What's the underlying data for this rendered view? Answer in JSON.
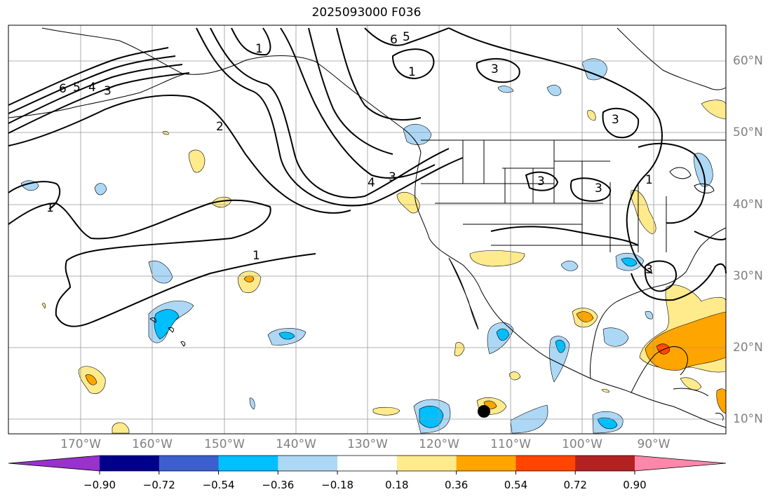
{
  "title": "2025093000 F036",
  "colors": {
    "land_outline": "#000000",
    "grid": "#999999",
    "contour": "#000000",
    "storm_marker": "#000000"
  },
  "lat_labels": [
    "60°N",
    "50°N",
    "40°N",
    "30°N",
    "20°N",
    "10°N"
  ],
  "lon_labels": [
    "170°W",
    "160°W",
    "150°W",
    "140°W",
    "130°W",
    "120°W",
    "110°W",
    "100°W",
    "90°W"
  ],
  "contour_labels": [
    "6",
    "5",
    "4",
    "3",
    "1",
    "2",
    "1",
    "1",
    "6",
    "5",
    "1",
    "3",
    "3",
    "4",
    "3",
    "3",
    "3",
    "3",
    "1"
  ],
  "colorbar": {
    "ticks": [
      "−0.90",
      "−0.72",
      "−0.54",
      "−0.36",
      "−0.18",
      "0.18",
      "0.36",
      "0.54",
      "0.72",
      "0.90"
    ],
    "colors": [
      "#9932cc",
      "#00008b",
      "#3c5fcd",
      "#00bfff",
      "#add8f5",
      "#ffffff",
      "#ffea8c",
      "#ffa500",
      "#ff4500",
      "#b22222",
      "#ff88aa"
    ]
  }
}
